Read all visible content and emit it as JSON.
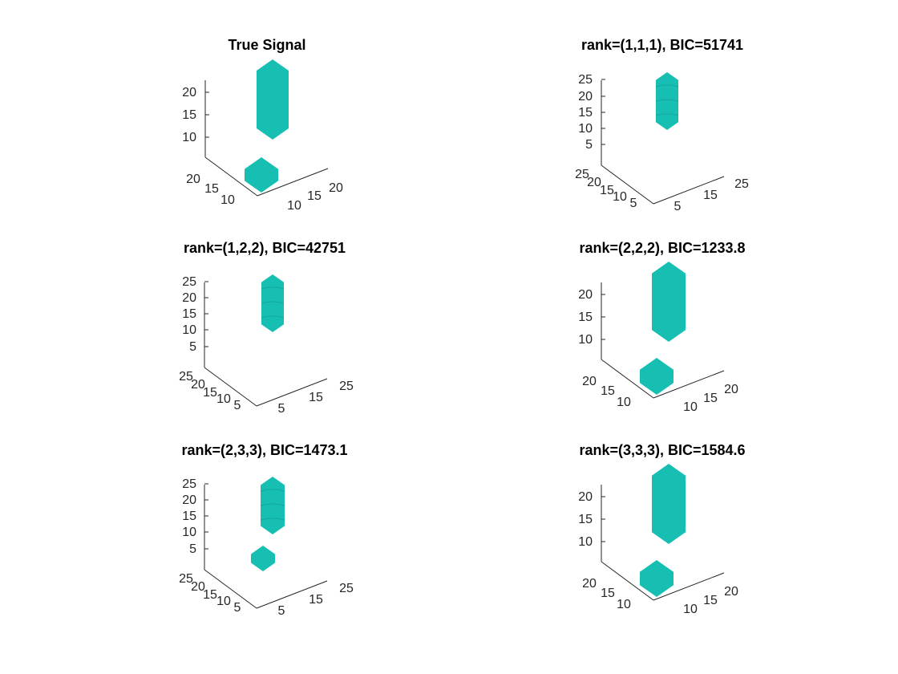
{
  "colors": {
    "surface": "#17bfb3",
    "axis": "#262626",
    "background": "#ffffff"
  },
  "chart_data": [
    {
      "type": "3d-isosurface",
      "title": "True Signal",
      "z_ticks": [
        "10",
        "15",
        "20"
      ],
      "x_ticks": [
        "10",
        "15",
        "20"
      ],
      "y_ticks": [
        "20",
        "15",
        "10"
      ],
      "objects": [
        {
          "shape": "column",
          "z_from": 8,
          "z_to": 22
        },
        {
          "shape": "block",
          "z_from": 0,
          "z_to": 4
        }
      ]
    },
    {
      "type": "3d-isosurface",
      "title": "rank=(1,1,1),  BIC=51741",
      "z_ticks": [
        "5",
        "10",
        "15",
        "20",
        "25"
      ],
      "x_ticks": [
        "5",
        "15",
        "25"
      ],
      "y_ticks": [
        "25",
        "20",
        "15",
        "10",
        "5"
      ],
      "objects": [
        {
          "shape": "column",
          "z_from": 10,
          "z_to": 25
        }
      ]
    },
    {
      "type": "3d-isosurface",
      "title": "rank=(1,2,2),  BIC=42751",
      "z_ticks": [
        "5",
        "10",
        "15",
        "20",
        "25"
      ],
      "x_ticks": [
        "5",
        "15",
        "25"
      ],
      "y_ticks": [
        "25",
        "20",
        "15",
        "10",
        "5"
      ],
      "objects": [
        {
          "shape": "column",
          "z_from": 10,
          "z_to": 25
        }
      ]
    },
    {
      "type": "3d-isosurface",
      "title": "rank=(2,2,2),  BIC=1233.8",
      "z_ticks": [
        "10",
        "15",
        "20"
      ],
      "x_ticks": [
        "10",
        "15",
        "20"
      ],
      "y_ticks": [
        "20",
        "15",
        "10"
      ],
      "objects": [
        {
          "shape": "column",
          "z_from": 8,
          "z_to": 22
        },
        {
          "shape": "block",
          "z_from": 0,
          "z_to": 4
        }
      ]
    },
    {
      "type": "3d-isosurface",
      "title": "rank=(2,3,3),  BIC=1473.1",
      "z_ticks": [
        "5",
        "10",
        "15",
        "20",
        "25"
      ],
      "x_ticks": [
        "5",
        "15",
        "25"
      ],
      "y_ticks": [
        "25",
        "20",
        "15",
        "10",
        "5"
      ],
      "objects": [
        {
          "shape": "column",
          "z_from": 10,
          "z_to": 25
        },
        {
          "shape": "block",
          "z_from": 0,
          "z_to": 4
        }
      ]
    },
    {
      "type": "3d-isosurface",
      "title": "rank=(3,3,3),  BIC=1584.6",
      "z_ticks": [
        "10",
        "15",
        "20"
      ],
      "x_ticks": [
        "10",
        "15",
        "20"
      ],
      "y_ticks": [
        "20",
        "15",
        "10"
      ],
      "objects": [
        {
          "shape": "column",
          "z_from": 8,
          "z_to": 22
        },
        {
          "shape": "block",
          "z_from": 0,
          "z_to": 4
        }
      ]
    }
  ]
}
